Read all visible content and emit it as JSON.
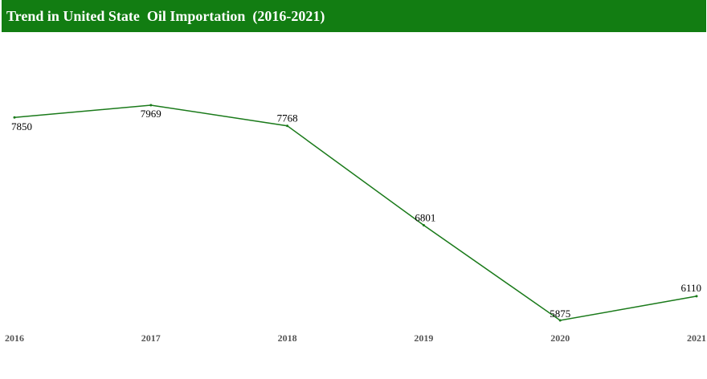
{
  "header": {
    "title": "Trend in United State  Oil Importation  (2016-2021)"
  },
  "colors": {
    "header_bg": "#127d12",
    "line": "#1a7a1a"
  },
  "chart_data": {
    "type": "line",
    "title": "Trend in United State  Oil Importation  (2016-2021)",
    "xlabel": "",
    "ylabel": "",
    "grid": false,
    "legend": "none",
    "categories": [
      "2016",
      "2017",
      "2018",
      "2019",
      "2020",
      "2021"
    ],
    "series": [
      {
        "values": [
          7850,
          7969,
          7768,
          6801,
          5875,
          6110
        ],
        "labels": [
          "7850",
          "7969",
          "7768",
          "6801",
          "5875",
          "6110"
        ]
      }
    ]
  }
}
